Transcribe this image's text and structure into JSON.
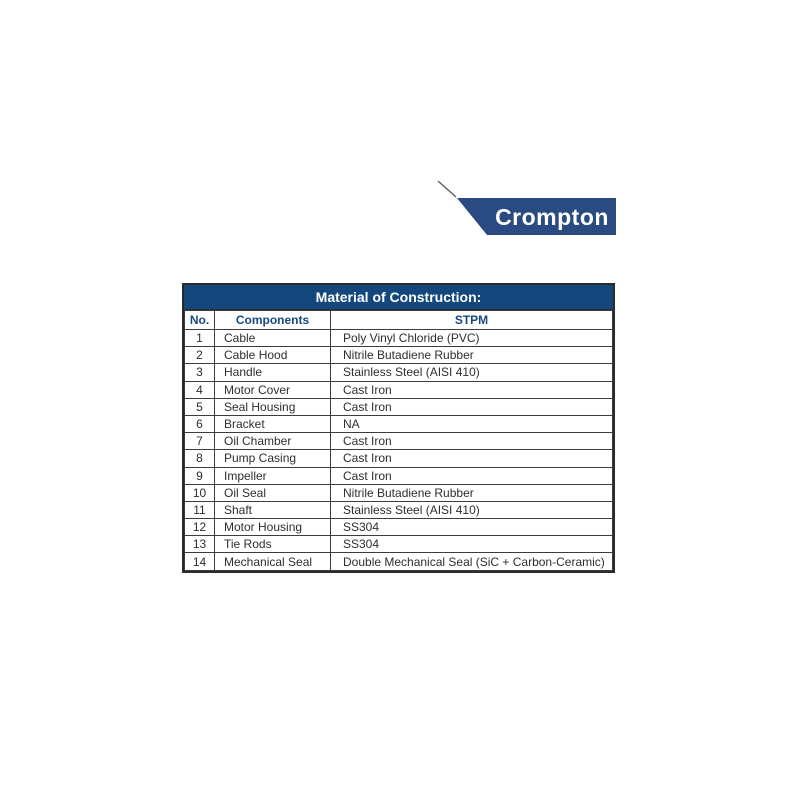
{
  "logo": {
    "text": "Crompton",
    "brand_color": "#2a4a82"
  },
  "colors": {
    "table_header_bg": "#14487c",
    "column_header_text": "#17497e",
    "border": "#3c3c3c"
  },
  "table": {
    "title": "Material of Construction:",
    "columns": [
      "No.",
      "Components",
      "STPM"
    ],
    "rows": [
      [
        "1",
        "Cable",
        "Poly Vinyl Chloride (PVC)"
      ],
      [
        "2",
        "Cable Hood",
        "Nitrile Butadiene Rubber"
      ],
      [
        "3",
        "Handle",
        "Stainless Steel (AISI 410)"
      ],
      [
        "4",
        "Motor Cover",
        "Cast Iron"
      ],
      [
        "5",
        "Seal Housing",
        "Cast Iron"
      ],
      [
        "6",
        "Bracket",
        "NA"
      ],
      [
        "7",
        "Oil Chamber",
        "Cast Iron"
      ],
      [
        "8",
        "Pump Casing",
        "Cast Iron"
      ],
      [
        "9",
        "Impeller",
        "Cast Iron"
      ],
      [
        "10",
        "Oil Seal",
        "Nitrile Butadiene Rubber"
      ],
      [
        "11",
        "Shaft",
        "Stainless Steel (AISI 410)"
      ],
      [
        "12",
        "Motor Housing",
        "SS304"
      ],
      [
        "13",
        "Tie Rods",
        "SS304"
      ],
      [
        "14",
        "Mechanical Seal",
        "Double Mechanical Seal (SiC + Carbon-Ceramic)"
      ]
    ]
  }
}
